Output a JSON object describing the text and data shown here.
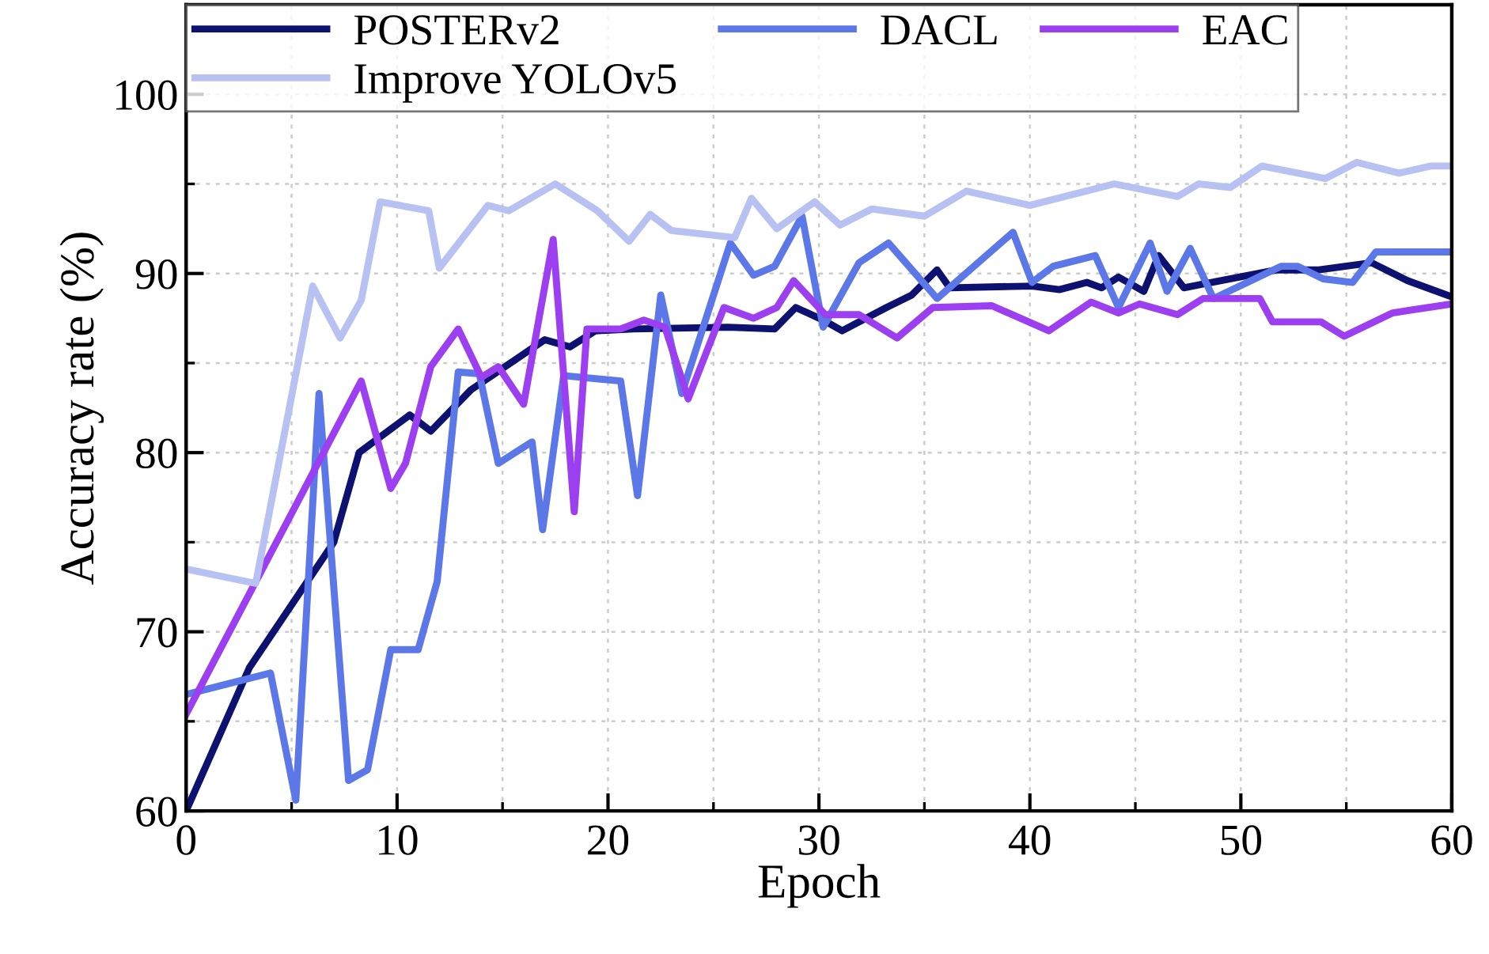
{
  "chart_data": {
    "type": "line",
    "xlabel": "Epoch",
    "ylabel": "Accuracy rate (%)",
    "xlim": [
      0,
      60
    ],
    "ylim": [
      60,
      105
    ],
    "xticks": [
      0,
      10,
      20,
      30,
      40,
      50,
      60
    ],
    "yticks": [
      60,
      70,
      80,
      90,
      100
    ],
    "grid": true,
    "legend": "top left",
    "marker": "none",
    "line_style": "solid",
    "series": [
      {
        "name": "POSTERv2",
        "color": "#0d1270",
        "x": [
          0,
          3,
          7,
          8.2,
          10.6,
          11.6,
          13.5,
          17,
          18.2,
          19.4,
          21.2,
          25.7,
          27.9,
          28.9,
          30.2,
          31.1,
          33.2,
          34.4,
          35.6,
          36.2,
          40.1,
          41.4,
          42.7,
          43.4,
          44.2,
          45.4,
          46.1,
          47.3,
          48.6,
          51.7,
          53.7,
          56.2,
          57.9,
          60
        ],
        "values": [
          60,
          68,
          75,
          80,
          82.1,
          81.2,
          83.5,
          86.3,
          85.9,
          86.8,
          86.9,
          87,
          86.9,
          88.1,
          87.4,
          86.8,
          88.1,
          88.8,
          90.2,
          89.2,
          89.3,
          89.1,
          89.5,
          89.2,
          89.8,
          89,
          91,
          89.2,
          89.5,
          90.2,
          90.2,
          90.6,
          89.6,
          88.7
        ]
      },
      {
        "name": "DACL",
        "color": "#5b77e8",
        "x": [
          0,
          4,
          5.2,
          6.3,
          7.7,
          8.6,
          9.7,
          11,
          11.9,
          12.9,
          13.9,
          14.8,
          16.4,
          16.9,
          17.9,
          20.6,
          21.4,
          22.5,
          23.5,
          25.8,
          26.9,
          27.9,
          29.2,
          30.2,
          31.9,
          33.3,
          35.6,
          39.2,
          40.1,
          41.1,
          43.1,
          44.2,
          45.7,
          46.5,
          47.6,
          48.7,
          51.9,
          52.7,
          53.9,
          55.3,
          56.4,
          60
        ],
        "values": [
          66.5,
          67.7,
          60.6,
          83.3,
          61.7,
          62.3,
          69,
          69,
          72.8,
          84.5,
          84.4,
          79.4,
          80.6,
          75.7,
          84.3,
          84,
          77.6,
          88.8,
          83.3,
          91.7,
          89.9,
          90.4,
          93.2,
          87,
          90.6,
          91.7,
          88.6,
          92.3,
          89.5,
          90.4,
          91,
          88.1,
          91.7,
          89,
          91.4,
          88.6,
          90.4,
          90.4,
          89.7,
          89.5,
          91.2,
          91.2
        ]
      },
      {
        "name": "EAC",
        "color": "#9b3ff0",
        "x": [
          0,
          8.3,
          9.7,
          10.4,
          11.6,
          12.9,
          14,
          14.8,
          16,
          17.4,
          18.4,
          19,
          20.6,
          21.7,
          22.7,
          23.8,
          25.5,
          26.9,
          28,
          28.8,
          30.3,
          31.9,
          33.7,
          35.4,
          38.2,
          40.9,
          42.9,
          44.2,
          45.2,
          47,
          48.2,
          50.9,
          51.5,
          53.8,
          54.9,
          57.2,
          60
        ],
        "values": [
          65.4,
          84,
          78,
          79.4,
          84.8,
          86.9,
          84.2,
          84.8,
          82.7,
          91.9,
          76.7,
          86.9,
          86.9,
          87.4,
          87,
          83,
          88.1,
          87.5,
          88.1,
          89.6,
          87.7,
          87.7,
          86.4,
          88.1,
          88.2,
          86.8,
          88.4,
          87.8,
          88.3,
          87.7,
          88.6,
          88.6,
          87.3,
          87.3,
          86.5,
          87.8,
          88.3
        ]
      },
      {
        "name": "Improve YOLOv5",
        "color": "#b8c2f2",
        "x": [
          0,
          3.3,
          6,
          7.3,
          8.3,
          9.2,
          11.5,
          12,
          14.3,
          15.3,
          17.5,
          19.5,
          21,
          22,
          23,
          26,
          26.8,
          28,
          29.8,
          31,
          32.5,
          35,
          37,
          40,
          44,
          47,
          48,
          49.5,
          51,
          54,
          55.5,
          57.5,
          59,
          60
        ],
        "values": [
          73.5,
          72.7,
          89.3,
          86.4,
          88.5,
          94,
          93.5,
          90.3,
          93.8,
          93.5,
          95,
          93.5,
          91.8,
          93.3,
          92.4,
          92,
          94.2,
          92.5,
          94,
          92.7,
          93.6,
          93.2,
          94.6,
          93.8,
          95,
          94.3,
          95,
          94.8,
          96,
          95.3,
          96.2,
          95.6,
          96,
          96
        ]
      }
    ]
  }
}
